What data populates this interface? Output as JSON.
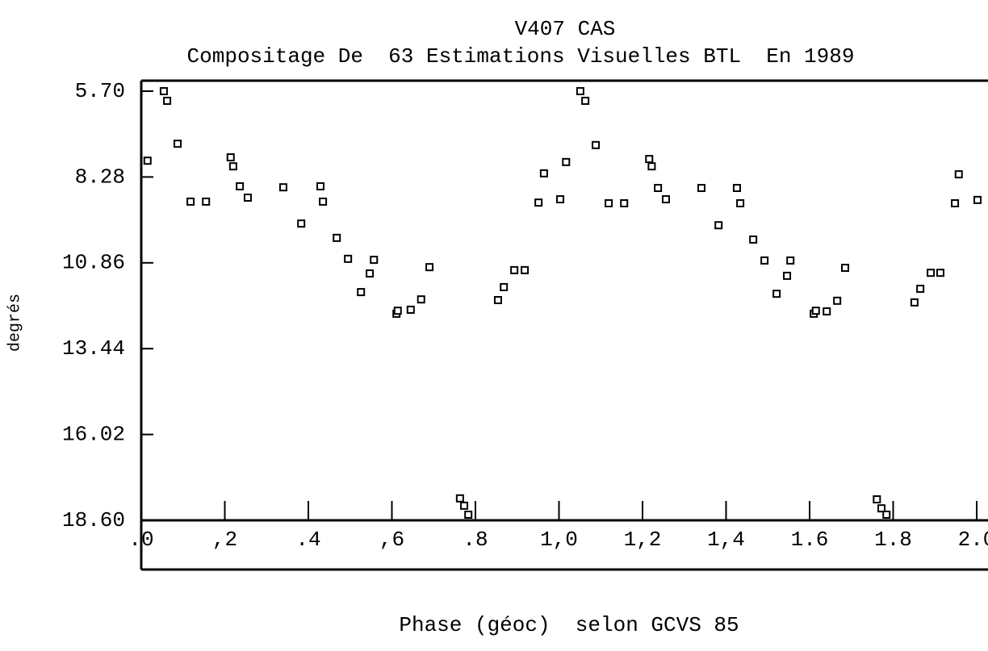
{
  "chart_data": {
    "type": "scatter",
    "title": "V407 CAS",
    "subtitle": "Compositage De  63 Estimations Visuelles BTL  En 1989",
    "x_label": "Phase (géoc)  selon GCVS 85",
    "y_label": "degrés",
    "color": "#000000",
    "xlim": [
      0,
      2.0
    ],
    "xticks": [
      {
        "value": 0,
        "label": ".0"
      },
      {
        "value": 0.2,
        "label": ",2"
      },
      {
        "value": 0.4,
        "label": ".4"
      },
      {
        "value": 0.6,
        "label": ",6"
      },
      {
        "value": 0.8,
        "label": ".8"
      },
      {
        "value": 1.0,
        "label": "1,0"
      },
      {
        "value": 1.2,
        "label": "1,2"
      },
      {
        "value": 1.4,
        "label": "1,4"
      },
      {
        "value": 1.6,
        "label": "1.6"
      },
      {
        "value": 1.8,
        "label": "1.8"
      },
      {
        "value": 2.0,
        "label": "2.0"
      }
    ],
    "ylim": [
      5.7,
      18.6
    ],
    "y_inverted": true,
    "yticks": [
      {
        "value": 5.7,
        "label": "5.70"
      },
      8.28,
      10.86,
      13.44,
      16.02,
      {
        "value": 18.6,
        "label": "18.60"
      }
    ],
    "x": [
      0.015,
      0.054,
      0.062,
      0.087,
      0.118,
      0.155,
      0.214,
      0.22,
      0.236,
      0.255,
      0.34,
      0.383,
      0.429,
      0.435,
      0.468,
      0.495,
      0.526,
      0.547,
      0.557,
      0.611,
      0.614,
      0.645,
      0.67,
      0.69,
      0.763,
      0.773,
      0.783,
      0.854,
      0.868,
      0.893,
      0.918,
      0.951,
      0.964,
      1.003,
      1.017,
      1.051,
      1.063,
      1.088,
      1.119,
      1.156,
      1.216,
      1.222,
      1.237,
      1.256,
      1.341,
      1.382,
      1.426,
      1.434,
      1.465,
      1.492,
      1.521,
      1.546,
      1.554,
      1.61,
      1.615,
      1.641,
      1.666,
      1.685,
      1.761,
      1.772,
      1.784,
      1.851,
      1.865,
      1.89,
      1.913,
      1.948,
      1.957,
      2.002
    ],
    "values": [
      7.79,
      5.7,
      5.99,
      7.28,
      9.02,
      9.02,
      7.69,
      7.96,
      8.56,
      8.9,
      8.59,
      9.68,
      8.56,
      9.02,
      10.11,
      10.74,
      11.74,
      11.18,
      10.77,
      12.39,
      12.3,
      12.27,
      11.96,
      10.99,
      17.94,
      18.16,
      18.43,
      11.98,
      11.59,
      11.08,
      11.08,
      9.05,
      8.17,
      8.95,
      7.83,
      5.7,
      5.99,
      7.32,
      9.07,
      9.07,
      7.74,
      7.96,
      8.61,
      8.95,
      8.61,
      9.73,
      8.61,
      9.07,
      10.16,
      10.79,
      11.79,
      11.25,
      10.79,
      12.39,
      12.3,
      12.32,
      12.0,
      11.01,
      17.97,
      18.24,
      18.43,
      12.05,
      11.64,
      11.16,
      11.16,
      9.07,
      8.2,
      8.97
    ]
  }
}
